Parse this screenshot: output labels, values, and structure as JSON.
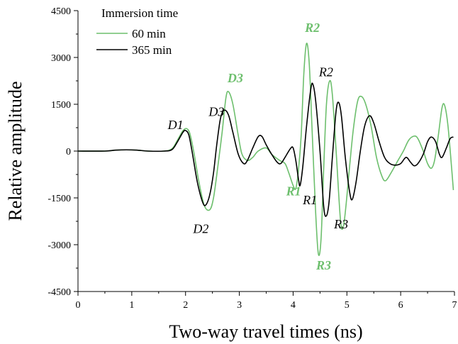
{
  "chart_data": {
    "type": "line",
    "xlabel": "Two-way travel times (ns)",
    "ylabel": "Relative  amplitude",
    "xlim": [
      0,
      7
    ],
    "ylim": [
      -4500,
      4500
    ],
    "x_ticks": [
      0,
      1,
      2,
      3,
      4,
      5,
      6,
      7
    ],
    "y_ticks": [
      -4500,
      -3000,
      -1500,
      0,
      1500,
      3000,
      4500
    ],
    "x_tick_labels": [
      "0",
      "1",
      "2",
      "3",
      "4",
      "5",
      "6",
      "7"
    ],
    "y_tick_labels": [
      "-4500",
      "-3000",
      "-1500",
      "0",
      "1500",
      "3000",
      "4500"
    ],
    "grid": false,
    "legend": {
      "title": "Immersion time",
      "placement": "top-left"
    },
    "series": [
      {
        "name": "60 min",
        "color": "#6dbf6d",
        "points": [
          [
            0,
            0
          ],
          [
            0.5,
            0
          ],
          [
            0.7,
            30
          ],
          [
            0.9,
            40
          ],
          [
            1.1,
            30
          ],
          [
            1.3,
            0
          ],
          [
            1.6,
            0
          ],
          [
            1.75,
            80
          ],
          [
            1.85,
            350
          ],
          [
            1.95,
            650
          ],
          [
            2.02,
            720
          ],
          [
            2.08,
            560
          ],
          [
            2.15,
            0
          ],
          [
            2.25,
            -1000
          ],
          [
            2.35,
            -1750
          ],
          [
            2.45,
            -1880
          ],
          [
            2.52,
            -1500
          ],
          [
            2.6,
            -500
          ],
          [
            2.68,
            600
          ],
          [
            2.75,
            1700
          ],
          [
            2.8,
            1900
          ],
          [
            2.88,
            1500
          ],
          [
            2.98,
            500
          ],
          [
            3.05,
            -100
          ],
          [
            3.15,
            -300
          ],
          [
            3.25,
            -200
          ],
          [
            3.35,
            0
          ],
          [
            3.5,
            100
          ],
          [
            3.6,
            -100
          ],
          [
            3.75,
            -300
          ],
          [
            3.85,
            -400
          ],
          [
            3.92,
            -700
          ],
          [
            4.0,
            -1100
          ],
          [
            4.05,
            -1200
          ],
          [
            4.1,
            -600
          ],
          [
            4.15,
            500
          ],
          [
            4.2,
            2500
          ],
          [
            4.25,
            3450
          ],
          [
            4.3,
            2800
          ],
          [
            4.35,
            800
          ],
          [
            4.42,
            -2000
          ],
          [
            4.47,
            -3300
          ],
          [
            4.52,
            -2800
          ],
          [
            4.57,
            -500
          ],
          [
            4.62,
            1500
          ],
          [
            4.68,
            2250
          ],
          [
            4.73,
            1800
          ],
          [
            4.8,
            0
          ],
          [
            4.88,
            -2200
          ],
          [
            4.93,
            -2450
          ],
          [
            4.98,
            -1800
          ],
          [
            5.05,
            -500
          ],
          [
            5.12,
            700
          ],
          [
            5.2,
            1600
          ],
          [
            5.27,
            1750
          ],
          [
            5.35,
            1500
          ],
          [
            5.45,
            800
          ],
          [
            5.55,
            -200
          ],
          [
            5.65,
            -800
          ],
          [
            5.72,
            -950
          ],
          [
            5.82,
            -700
          ],
          [
            5.95,
            -300
          ],
          [
            6.05,
            0
          ],
          [
            6.15,
            350
          ],
          [
            6.25,
            480
          ],
          [
            6.32,
            400
          ],
          [
            6.42,
            0
          ],
          [
            6.5,
            -400
          ],
          [
            6.57,
            -550
          ],
          [
            6.63,
            -300
          ],
          [
            6.7,
            500
          ],
          [
            6.77,
            1400
          ],
          [
            6.82,
            1450
          ],
          [
            6.88,
            800
          ],
          [
            6.95,
            -600
          ],
          [
            6.98,
            -1250
          ]
        ]
      },
      {
        "name": "365 min",
        "color": "#000000",
        "points": [
          [
            0,
            0
          ],
          [
            0.5,
            0
          ],
          [
            0.7,
            30
          ],
          [
            0.9,
            40
          ],
          [
            1.1,
            30
          ],
          [
            1.3,
            0
          ],
          [
            1.6,
            0
          ],
          [
            1.75,
            50
          ],
          [
            1.85,
            300
          ],
          [
            1.95,
            600
          ],
          [
            2.0,
            660
          ],
          [
            2.06,
            520
          ],
          [
            2.12,
            0
          ],
          [
            2.22,
            -1000
          ],
          [
            2.32,
            -1650
          ],
          [
            2.38,
            -1720
          ],
          [
            2.45,
            -1400
          ],
          [
            2.52,
            -700
          ],
          [
            2.58,
            200
          ],
          [
            2.65,
            1050
          ],
          [
            2.72,
            1310
          ],
          [
            2.8,
            1150
          ],
          [
            2.88,
            600
          ],
          [
            2.98,
            -100
          ],
          [
            3.08,
            -400
          ],
          [
            3.15,
            -300
          ],
          [
            3.25,
            100
          ],
          [
            3.35,
            460
          ],
          [
            3.42,
            470
          ],
          [
            3.5,
            200
          ],
          [
            3.6,
            -100
          ],
          [
            3.7,
            -350
          ],
          [
            3.77,
            -400
          ],
          [
            3.85,
            -200
          ],
          [
            3.95,
            80
          ],
          [
            4.0,
            100
          ],
          [
            4.05,
            -300
          ],
          [
            4.1,
            -900
          ],
          [
            4.13,
            -1100
          ],
          [
            4.18,
            -500
          ],
          [
            4.25,
            800
          ],
          [
            4.33,
            2000
          ],
          [
            4.37,
            2130
          ],
          [
            4.42,
            1600
          ],
          [
            4.5,
            0
          ],
          [
            4.57,
            -1800
          ],
          [
            4.62,
            -2070
          ],
          [
            4.67,
            -1600
          ],
          [
            4.73,
            -200
          ],
          [
            4.8,
            1300
          ],
          [
            4.85,
            1550
          ],
          [
            4.9,
            1100
          ],
          [
            4.97,
            -200
          ],
          [
            5.05,
            -1300
          ],
          [
            5.1,
            -1550
          ],
          [
            5.17,
            -1000
          ],
          [
            5.25,
            0
          ],
          [
            5.33,
            800
          ],
          [
            5.42,
            1130
          ],
          [
            5.5,
            900
          ],
          [
            5.6,
            300
          ],
          [
            5.7,
            -200
          ],
          [
            5.8,
            -400
          ],
          [
            5.9,
            -450
          ],
          [
            6.0,
            -400
          ],
          [
            6.1,
            -200
          ],
          [
            6.18,
            -350
          ],
          [
            6.25,
            -470
          ],
          [
            6.32,
            -400
          ],
          [
            6.42,
            -100
          ],
          [
            6.5,
            300
          ],
          [
            6.57,
            450
          ],
          [
            6.65,
            300
          ],
          [
            6.72,
            -100
          ],
          [
            6.77,
            -200
          ],
          [
            6.85,
            100
          ],
          [
            6.92,
            400
          ],
          [
            6.98,
            450
          ]
        ]
      }
    ],
    "annotations": [
      {
        "text": "D1",
        "x": 1.67,
        "y": 700,
        "color": "#000000",
        "weight": "normal"
      },
      {
        "text": "D3",
        "x": 2.43,
        "y": 1130,
        "color": "#000000",
        "weight": "normal"
      },
      {
        "text": "D3",
        "x": 2.78,
        "y": 2200,
        "color": "#6dbf6d",
        "weight": "bold"
      },
      {
        "text": "D2",
        "x": 2.14,
        "y": -2620,
        "color": "#000000",
        "weight": "normal"
      },
      {
        "text": "R2",
        "x": 4.22,
        "y": 3820,
        "color": "#6dbf6d",
        "weight": "bold"
      },
      {
        "text": "R2",
        "x": 4.48,
        "y": 2400,
        "color": "#000000",
        "weight": "normal"
      },
      {
        "text": "R1",
        "x": 3.87,
        "y": -1420,
        "color": "#6dbf6d",
        "weight": "bold"
      },
      {
        "text": "R1",
        "x": 4.18,
        "y": -1700,
        "color": "#000000",
        "weight": "normal"
      },
      {
        "text": "R3",
        "x": 4.76,
        "y": -2480,
        "color": "#000000",
        "weight": "normal"
      },
      {
        "text": "R3",
        "x": 4.43,
        "y": -3800,
        "color": "#6dbf6d",
        "weight": "bold"
      }
    ]
  }
}
